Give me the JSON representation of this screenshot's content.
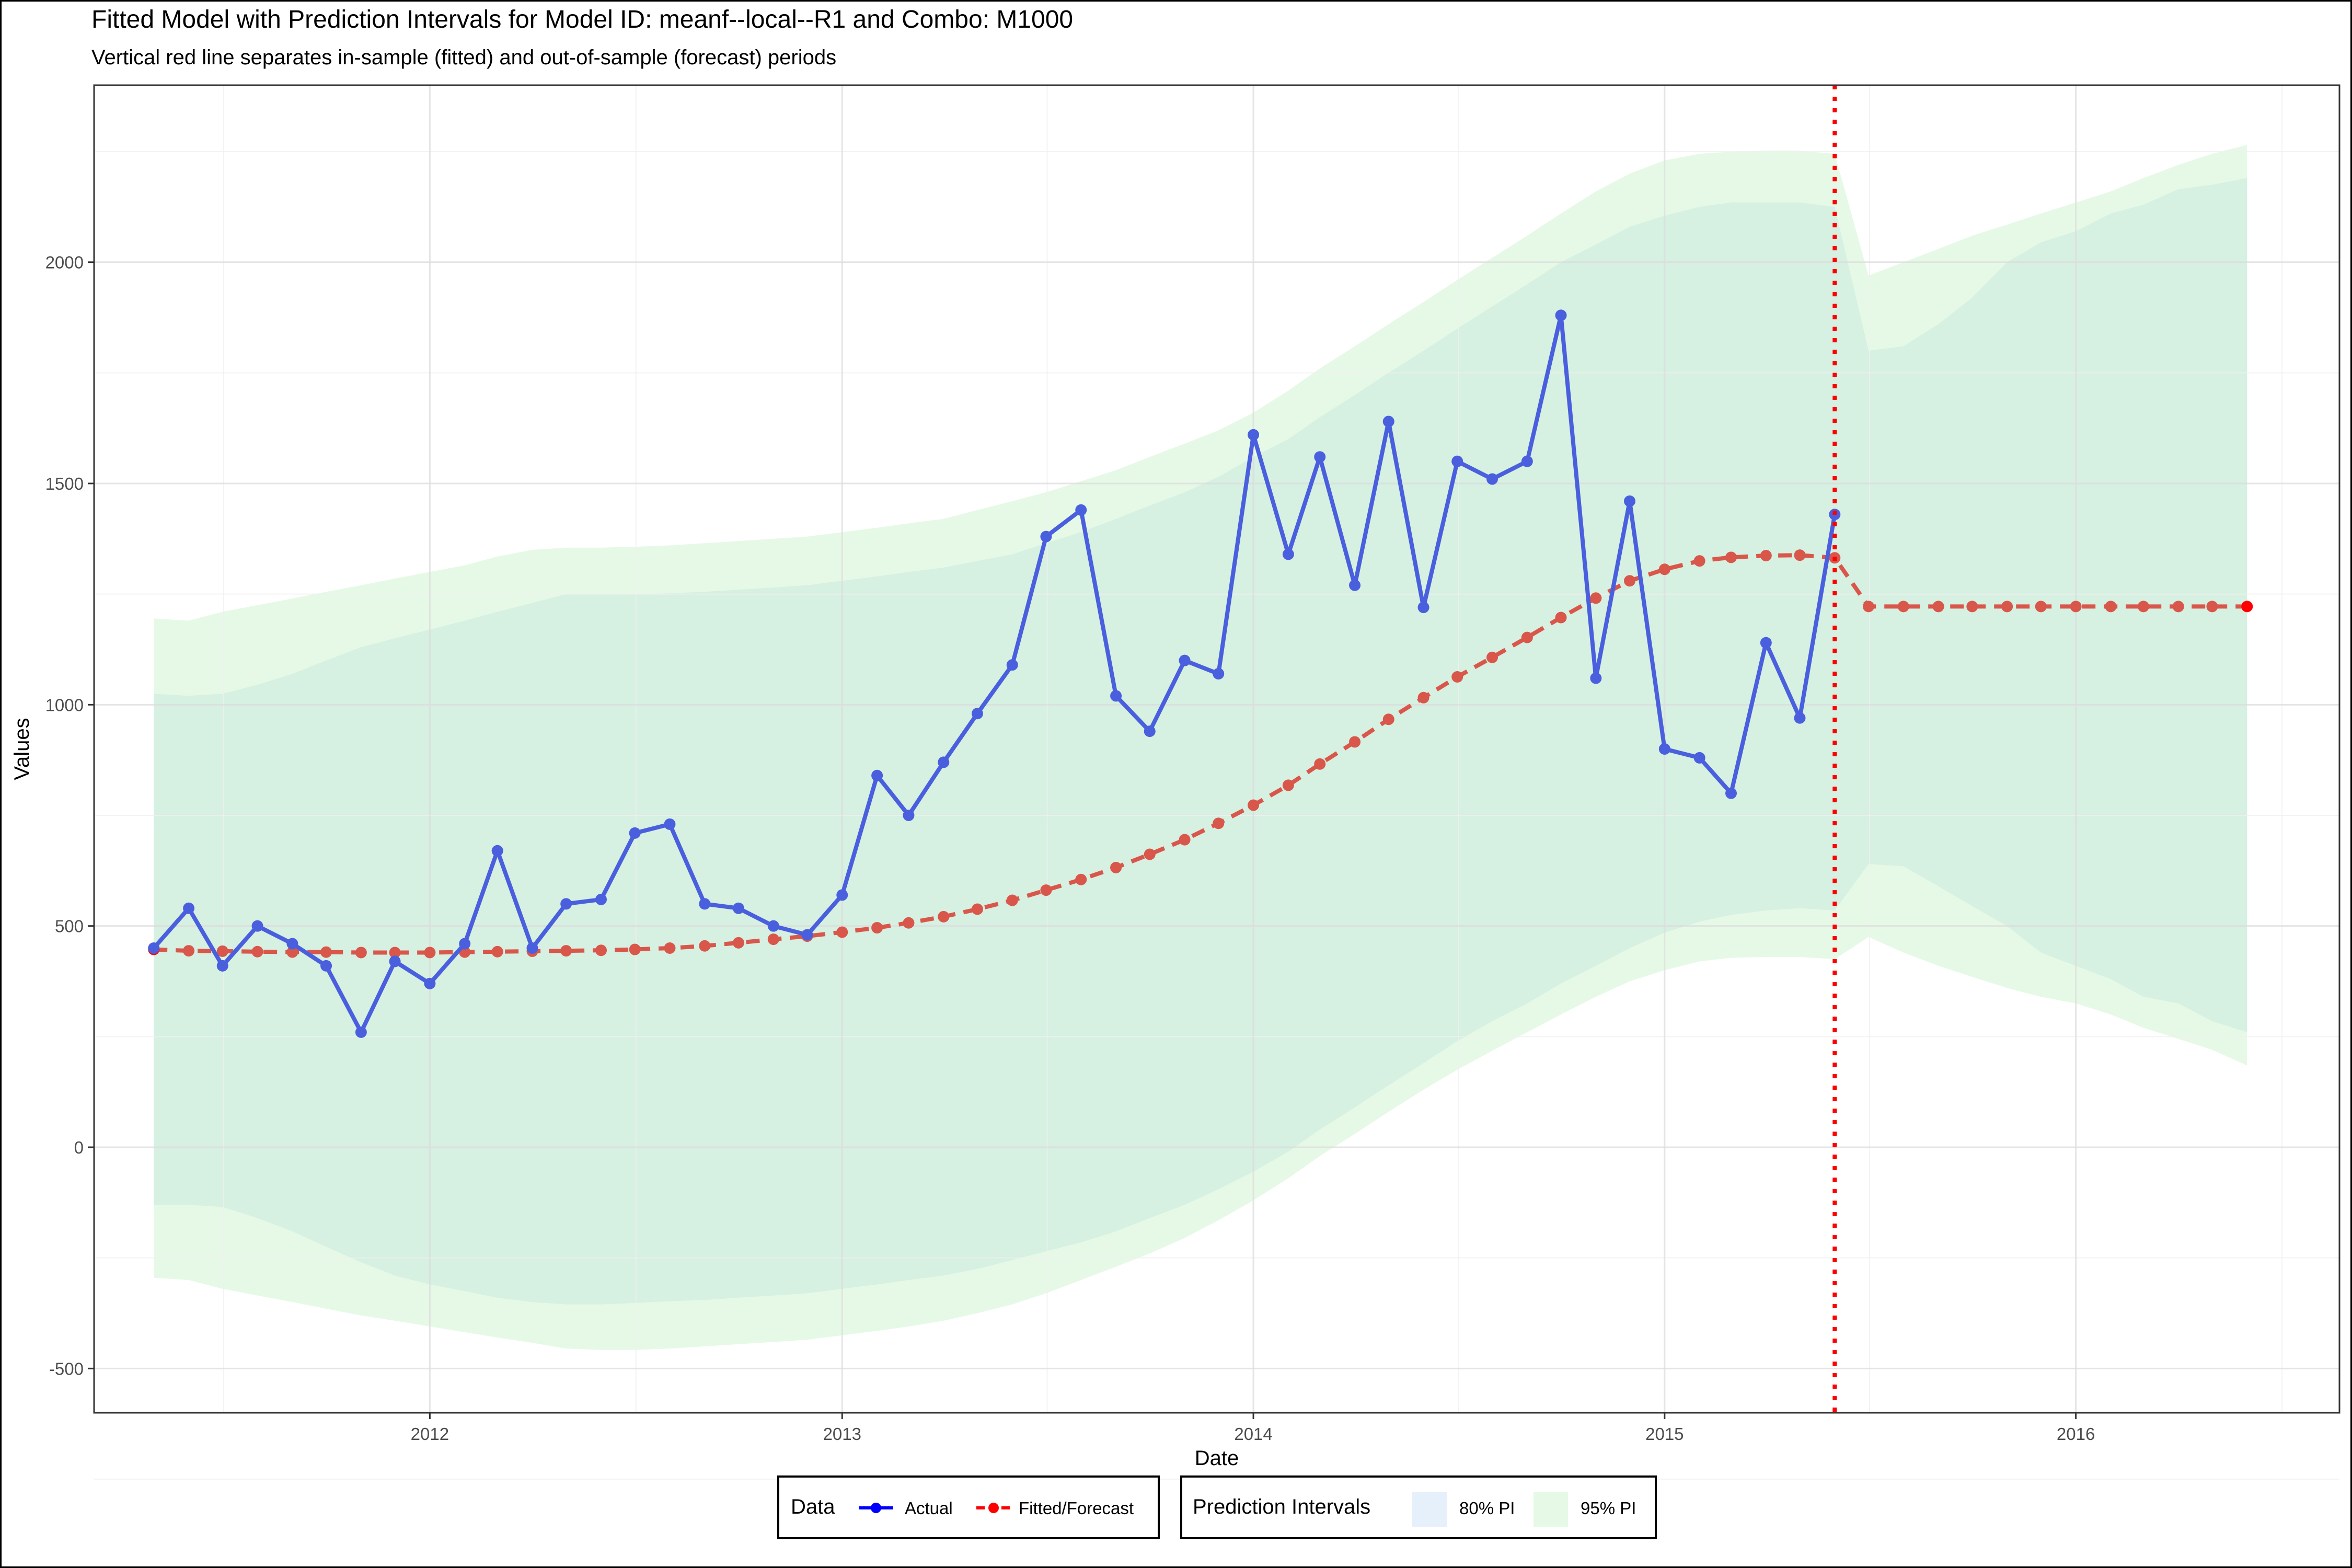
{
  "chart_data": {
    "type": "line",
    "title": "Fitted Model with Prediction Intervals for Model ID: meanf--local--R1 and Combo: M1000",
    "subtitle": "Vertical red line separates in-sample (fitted) and out-of-sample (forecast) periods",
    "xlabel": "Date",
    "ylabel": "Values",
    "xlim": [
      "2011-03-09",
      "2016-08-22"
    ],
    "ylim": [
      -600,
      2400
    ],
    "x_ticks": [
      "2012-01-01",
      "2013-01-01",
      "2014-01-01",
      "2015-01-01",
      "2016-01-01"
    ],
    "x_tick_labels": [
      "2012",
      "2013",
      "2014",
      "2015",
      "2016"
    ],
    "y_ticks": [
      -500,
      0,
      500,
      1000,
      1500,
      2000
    ],
    "y_tick_labels": [
      "-500",
      "0",
      "500",
      "1000",
      "1500",
      "2000"
    ],
    "grid": true,
    "split_date": "2015-06-01",
    "series": [
      {
        "name": "Actual",
        "color": "#4a5fde",
        "x": [
          "2011-05-01",
          "2011-06-01",
          "2011-07-01",
          "2011-08-01",
          "2011-09-01",
          "2011-10-01",
          "2011-11-01",
          "2011-12-01",
          "2012-01-01",
          "2012-02-01",
          "2012-03-01",
          "2012-04-01",
          "2012-05-01",
          "2012-06-01",
          "2012-07-01",
          "2012-08-01",
          "2012-09-01",
          "2012-10-01",
          "2012-11-01",
          "2012-12-01",
          "2013-01-01",
          "2013-02-01",
          "2013-03-01",
          "2013-04-01",
          "2013-05-01",
          "2013-06-01",
          "2013-07-01",
          "2013-08-01",
          "2013-09-01",
          "2013-10-01",
          "2013-11-01",
          "2013-12-01",
          "2014-01-01",
          "2014-02-01",
          "2014-03-01",
          "2014-04-01",
          "2014-05-01",
          "2014-06-01",
          "2014-07-01",
          "2014-08-01",
          "2014-09-01",
          "2014-10-01",
          "2014-11-01",
          "2014-12-01",
          "2015-01-01",
          "2015-02-01",
          "2015-03-01",
          "2015-04-01",
          "2015-05-01",
          "2015-06-01"
        ],
        "values": [
          450,
          540,
          410,
          500,
          460,
          410,
          260,
          420,
          370,
          460,
          670,
          450,
          550,
          560,
          710,
          730,
          550,
          540,
          500,
          480,
          570,
          840,
          750,
          870,
          980,
          1090,
          1380,
          1440,
          1020,
          940,
          1100,
          1070,
          1610,
          1340,
          1560,
          1270,
          1640,
          1220,
          1550,
          1510,
          1550,
          1880,
          1060,
          1460,
          900,
          880,
          800,
          1140,
          970,
          1430
        ]
      },
      {
        "name": "Fitted/Forecast",
        "color": "#d9574a",
        "x": [
          "2011-05-01",
          "2011-06-01",
          "2011-07-01",
          "2011-08-01",
          "2011-09-01",
          "2011-10-01",
          "2011-11-01",
          "2011-12-01",
          "2012-01-01",
          "2012-02-01",
          "2012-03-01",
          "2012-04-01",
          "2012-05-01",
          "2012-06-01",
          "2012-07-01",
          "2012-08-01",
          "2012-09-01",
          "2012-10-01",
          "2012-11-01",
          "2012-12-01",
          "2013-01-01",
          "2013-02-01",
          "2013-03-01",
          "2013-04-01",
          "2013-05-01",
          "2013-06-01",
          "2013-07-01",
          "2013-08-01",
          "2013-09-01",
          "2013-10-01",
          "2013-11-01",
          "2013-12-01",
          "2014-01-01",
          "2014-02-01",
          "2014-03-01",
          "2014-04-01",
          "2014-05-01",
          "2014-06-01",
          "2014-07-01",
          "2014-08-01",
          "2014-09-01",
          "2014-10-01",
          "2014-11-01",
          "2014-12-01",
          "2015-01-01",
          "2015-02-01",
          "2015-03-01",
          "2015-04-01",
          "2015-05-01",
          "2015-06-01",
          "2015-07-01",
          "2015-08-01",
          "2015-09-01",
          "2015-10-01",
          "2015-11-01",
          "2015-12-01",
          "2016-01-01",
          "2016-02-01",
          "2016-03-01",
          "2016-04-01",
          "2016-05-01",
          "2016-06-01"
        ],
        "values": [
          447,
          444,
          443,
          442,
          441,
          441,
          440,
          440,
          440,
          441,
          442,
          443,
          444,
          445,
          447,
          450,
          455,
          462,
          470,
          477,
          486,
          496,
          507,
          521,
          538,
          558,
          581,
          605,
          632,
          662,
          695,
          732,
          773,
          818,
          866,
          916,
          967,
          1016,
          1063,
          1107,
          1152,
          1197,
          1241,
          1280,
          1306,
          1325,
          1333,
          1337,
          1338,
          1332,
          1222,
          1222,
          1222,
          1222,
          1222,
          1222,
          1222,
          1222,
          1222,
          1222,
          1222,
          1222
        ]
      }
    ],
    "intervals": [
      {
        "name": "80% PI",
        "color": "#d6f0e2",
        "x": [
          "2011-05-01",
          "2011-06-01",
          "2011-07-01",
          "2011-08-01",
          "2011-09-01",
          "2011-10-01",
          "2011-11-01",
          "2011-12-01",
          "2012-01-01",
          "2012-02-01",
          "2012-03-01",
          "2012-04-01",
          "2012-05-01",
          "2012-06-01",
          "2012-07-01",
          "2012-08-01",
          "2012-09-01",
          "2012-10-01",
          "2012-11-01",
          "2012-12-01",
          "2013-01-01",
          "2013-02-01",
          "2013-03-01",
          "2013-04-01",
          "2013-05-01",
          "2013-06-01",
          "2013-07-01",
          "2013-08-01",
          "2013-09-01",
          "2013-10-01",
          "2013-11-01",
          "2013-12-01",
          "2014-01-01",
          "2014-02-01",
          "2014-03-01",
          "2014-04-01",
          "2014-05-01",
          "2014-06-01",
          "2014-07-01",
          "2014-08-01",
          "2014-09-01",
          "2014-10-01",
          "2014-11-01",
          "2014-12-01",
          "2015-01-01",
          "2015-02-01",
          "2015-03-01",
          "2015-04-01",
          "2015-05-01",
          "2015-06-01",
          "2015-07-01",
          "2015-08-01",
          "2015-09-01",
          "2015-10-01",
          "2015-11-01",
          "2015-12-01",
          "2016-01-01",
          "2016-02-01",
          "2016-03-01",
          "2016-04-01",
          "2016-05-01",
          "2016-06-01"
        ],
        "upper": [
          1025,
          1020,
          1025,
          1045,
          1070,
          1100,
          1130,
          1150,
          1170,
          1190,
          1210,
          1230,
          1250,
          1250,
          1250,
          1252,
          1255,
          1260,
          1265,
          1270,
          1280,
          1290,
          1300,
          1310,
          1325,
          1340,
          1365,
          1390,
          1420,
          1450,
          1480,
          1515,
          1560,
          1600,
          1650,
          1700,
          1750,
          1800,
          1850,
          1900,
          1950,
          2000,
          2040,
          2080,
          2105,
          2125,
          2135,
          2135,
          2135,
          2125,
          1800,
          1810,
          1860,
          1920,
          2000,
          2045,
          2070,
          2110,
          2130,
          2165,
          2175,
          2190
        ],
        "lower": [
          -130,
          -130,
          -135,
          -160,
          -190,
          -225,
          -260,
          -290,
          -310,
          -325,
          -340,
          -350,
          -355,
          -355,
          -352,
          -348,
          -345,
          -340,
          -335,
          -330,
          -320,
          -310,
          -300,
          -290,
          -275,
          -255,
          -235,
          -215,
          -190,
          -160,
          -130,
          -95,
          -55,
          -10,
          40,
          90,
          140,
          190,
          240,
          285,
          325,
          370,
          410,
          450,
          485,
          510,
          525,
          535,
          540,
          535,
          640,
          635,
          590,
          545,
          500,
          440,
          410,
          380,
          340,
          325,
          285,
          260
        ]
      },
      {
        "name": "95% PI",
        "color": "#e6f9e6",
        "x": [
          "2011-05-01",
          "2011-06-01",
          "2011-07-01",
          "2011-08-01",
          "2011-09-01",
          "2011-10-01",
          "2011-11-01",
          "2011-12-01",
          "2012-01-01",
          "2012-02-01",
          "2012-03-01",
          "2012-04-01",
          "2012-05-01",
          "2012-06-01",
          "2012-07-01",
          "2012-08-01",
          "2012-09-01",
          "2012-10-01",
          "2012-11-01",
          "2012-12-01",
          "2013-01-01",
          "2013-02-01",
          "2013-03-01",
          "2013-04-01",
          "2013-05-01",
          "2013-06-01",
          "2013-07-01",
          "2013-08-01",
          "2013-09-01",
          "2013-10-01",
          "2013-11-01",
          "2013-12-01",
          "2014-01-01",
          "2014-02-01",
          "2014-03-01",
          "2014-04-01",
          "2014-05-01",
          "2014-06-01",
          "2014-07-01",
          "2014-08-01",
          "2014-09-01",
          "2014-10-01",
          "2014-11-01",
          "2014-12-01",
          "2015-01-01",
          "2015-02-01",
          "2015-03-01",
          "2015-04-01",
          "2015-05-01",
          "2015-06-01",
          "2015-07-01",
          "2015-08-01",
          "2015-09-01",
          "2015-10-01",
          "2015-11-01",
          "2015-12-01",
          "2016-01-01",
          "2016-02-01",
          "2016-03-01",
          "2016-04-01",
          "2016-05-01",
          "2016-06-01"
        ],
        "upper": [
          1195,
          1190,
          1210,
          1225,
          1240,
          1255,
          1270,
          1285,
          1300,
          1315,
          1335,
          1350,
          1355,
          1355,
          1357,
          1360,
          1365,
          1370,
          1375,
          1380,
          1390,
          1400,
          1410,
          1420,
          1440,
          1460,
          1480,
          1505,
          1530,
          1560,
          1590,
          1620,
          1660,
          1710,
          1760,
          1810,
          1860,
          1910,
          1960,
          2010,
          2060,
          2110,
          2160,
          2200,
          2230,
          2245,
          2250,
          2252,
          2252,
          2245,
          1970,
          2000,
          2030,
          2060,
          2085,
          2110,
          2135,
          2160,
          2190,
          2220,
          2245,
          2265
        ],
        "lower": [
          -295,
          -300,
          -320,
          -335,
          -350,
          -365,
          -380,
          -392,
          -405,
          -418,
          -430,
          -442,
          -455,
          -458,
          -458,
          -455,
          -450,
          -445,
          -440,
          -435,
          -425,
          -415,
          -405,
          -392,
          -375,
          -355,
          -330,
          -300,
          -270,
          -240,
          -205,
          -165,
          -120,
          -70,
          -20,
          30,
          80,
          130,
          175,
          218,
          260,
          300,
          340,
          375,
          400,
          420,
          428,
          430,
          430,
          425,
          475,
          440,
          410,
          385,
          360,
          340,
          325,
          300,
          270,
          245,
          220,
          185
        ]
      }
    ],
    "legends": [
      {
        "title": "Data",
        "entries": [
          "Actual",
          "Fitted/Forecast"
        ]
      },
      {
        "title": "Prediction Intervals",
        "entries": [
          "80% PI",
          "95% PI"
        ]
      }
    ],
    "legend_position": "bottom",
    "colors": {
      "actual_line": "#4a5fde",
      "actual_point": "#0000ff",
      "fitted_line": "#d9574a",
      "fitted_point": "#ff0000",
      "split_line": "#ff0000",
      "pi80": "#d6f0e2",
      "pi95": "#e6f9e6",
      "pi80_legend": "#e6f0fa",
      "pi95_legend": "#e6f9e6",
      "grid_major": "#dcdcdc",
      "grid_minor": "#f0f0f0"
    }
  }
}
